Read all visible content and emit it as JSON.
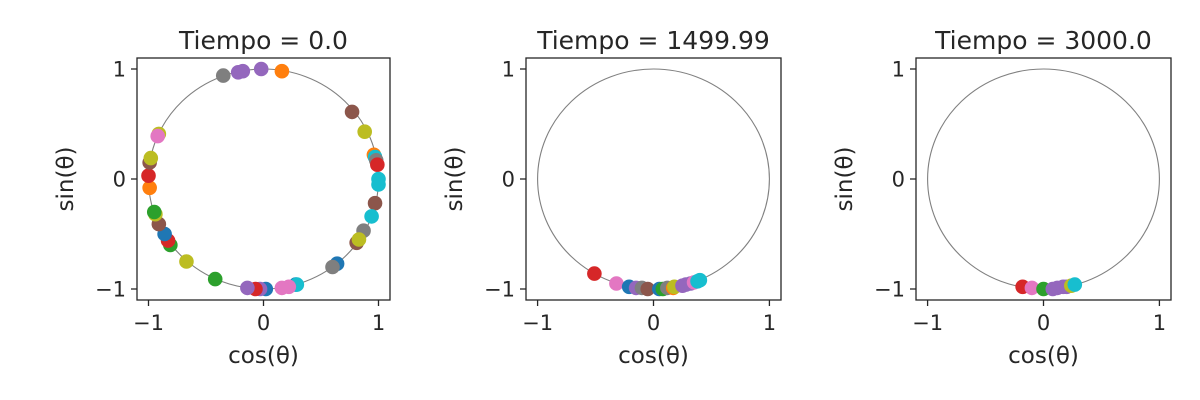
{
  "chart_data": [
    {
      "type": "scatter",
      "title": "Tiempo = 0.0",
      "xlabel": "cos(θ)",
      "ylabel": "sin(θ)",
      "xlim": [
        -1.1,
        1.1
      ],
      "ylim": [
        -1.1,
        1.1
      ],
      "xticks": [
        -1,
        0,
        1
      ],
      "yticks": [
        -1,
        0,
        1
      ],
      "xtick_labels": [
        "−1",
        "0",
        "1"
      ],
      "ytick_labels": [
        "−1",
        "0",
        "1"
      ],
      "reference_circle": true,
      "grid": false,
      "points": [
        {
          "x": -0.35,
          "y": 0.94,
          "color": "#7f7f7f"
        },
        {
          "x": -0.22,
          "y": 0.97,
          "color": "#9467bd"
        },
        {
          "x": -0.18,
          "y": 0.98,
          "color": "#9467bd"
        },
        {
          "x": -0.02,
          "y": 1.0,
          "color": "#9467bd"
        },
        {
          "x": 0.16,
          "y": 0.98,
          "color": "#ff7f0e"
        },
        {
          "x": 0.77,
          "y": 0.61,
          "color": "#8c564b"
        },
        {
          "x": 0.88,
          "y": 0.43,
          "color": "#bcbd22"
        },
        {
          "x": 0.96,
          "y": 0.22,
          "color": "#ff7f0e"
        },
        {
          "x": 0.97,
          "y": 0.2,
          "color": "#17becf"
        },
        {
          "x": 0.98,
          "y": 0.17,
          "color": "#7f7f7f"
        },
        {
          "x": 0.99,
          "y": 0.13,
          "color": "#d62728"
        },
        {
          "x": 1.0,
          "y": 0.0,
          "color": "#17becf"
        },
        {
          "x": 1.0,
          "y": -0.05,
          "color": "#17becf"
        },
        {
          "x": 0.97,
          "y": -0.22,
          "color": "#8c564b"
        },
        {
          "x": 0.94,
          "y": -0.34,
          "color": "#17becf"
        },
        {
          "x": 0.87,
          "y": -0.47,
          "color": "#7f7f7f"
        },
        {
          "x": 0.81,
          "y": -0.58,
          "color": "#8c564b"
        },
        {
          "x": 0.83,
          "y": -0.55,
          "color": "#bcbd22"
        },
        {
          "x": 0.64,
          "y": -0.77,
          "color": "#1f77b4"
        },
        {
          "x": 0.6,
          "y": -0.8,
          "color": "#7f7f7f"
        },
        {
          "x": 0.28,
          "y": -0.96,
          "color": "#1f77b4"
        },
        {
          "x": 0.29,
          "y": -0.96,
          "color": "#17becf"
        },
        {
          "x": 0.22,
          "y": -0.98,
          "color": "#e377c2"
        },
        {
          "x": 0.16,
          "y": -0.99,
          "color": "#e377c2"
        },
        {
          "x": 0.02,
          "y": -1.0,
          "color": "#1f77b4"
        },
        {
          "x": -0.03,
          "y": -1.0,
          "color": "#9467bd"
        },
        {
          "x": -0.07,
          "y": -1.0,
          "color": "#d62728"
        },
        {
          "x": -0.14,
          "y": -0.99,
          "color": "#9467bd"
        },
        {
          "x": -0.42,
          "y": -0.91,
          "color": "#2ca02c"
        },
        {
          "x": -0.67,
          "y": -0.75,
          "color": "#bcbd22"
        },
        {
          "x": -0.81,
          "y": -0.6,
          "color": "#2ca02c"
        },
        {
          "x": -0.83,
          "y": -0.56,
          "color": "#d62728"
        },
        {
          "x": -0.86,
          "y": -0.5,
          "color": "#1f77b4"
        },
        {
          "x": -0.91,
          "y": -0.41,
          "color": "#8c564b"
        },
        {
          "x": -0.94,
          "y": -0.32,
          "color": "#bcbd22"
        },
        {
          "x": -0.95,
          "y": -0.3,
          "color": "#2ca02c"
        },
        {
          "x": -0.99,
          "y": -0.08,
          "color": "#ff7f0e"
        },
        {
          "x": -1.0,
          "y": 0.03,
          "color": "#d62728"
        },
        {
          "x": -0.99,
          "y": 0.15,
          "color": "#8c564b"
        },
        {
          "x": -0.98,
          "y": 0.19,
          "color": "#bcbd22"
        },
        {
          "x": -0.91,
          "y": 0.41,
          "color": "#bcbd22"
        },
        {
          "x": -0.92,
          "y": 0.39,
          "color": "#e377c2"
        }
      ]
    },
    {
      "type": "scatter",
      "title": "Tiempo = 1499.99",
      "xlabel": "cos(θ)",
      "ylabel": "sin(θ)",
      "xlim": [
        -1.1,
        1.1
      ],
      "ylim": [
        -1.1,
        1.1
      ],
      "xticks": [
        -1,
        0,
        1
      ],
      "yticks": [
        -1,
        0,
        1
      ],
      "xtick_labels": [
        "−1",
        "0",
        "1"
      ],
      "ytick_labels": [
        "−1",
        "0",
        "1"
      ],
      "reference_circle": true,
      "grid": false,
      "points": [
        {
          "x": -0.51,
          "y": -0.86,
          "color": "#d62728"
        },
        {
          "x": -0.32,
          "y": -0.95,
          "color": "#e377c2"
        },
        {
          "x": -0.21,
          "y": -0.98,
          "color": "#1f77b4"
        },
        {
          "x": -0.15,
          "y": -0.99,
          "color": "#9467bd"
        },
        {
          "x": -0.1,
          "y": -0.99,
          "color": "#7f7f7f"
        },
        {
          "x": -0.05,
          "y": -1.0,
          "color": "#8c564b"
        },
        {
          "x": 0.05,
          "y": -1.0,
          "color": "#1f77b4"
        },
        {
          "x": 0.08,
          "y": -1.0,
          "color": "#2ca02c"
        },
        {
          "x": 0.12,
          "y": -0.99,
          "color": "#7f7f7f"
        },
        {
          "x": 0.17,
          "y": -0.99,
          "color": "#ff7f0e"
        },
        {
          "x": 0.18,
          "y": -0.98,
          "color": "#bcbd22"
        },
        {
          "x": 0.25,
          "y": -0.97,
          "color": "#9467bd"
        },
        {
          "x": 0.28,
          "y": -0.96,
          "color": "#9467bd"
        },
        {
          "x": 0.32,
          "y": -0.95,
          "color": "#9467bd"
        },
        {
          "x": 0.35,
          "y": -0.94,
          "color": "#e377c2"
        },
        {
          "x": 0.38,
          "y": -0.93,
          "color": "#17becf"
        },
        {
          "x": 0.4,
          "y": -0.92,
          "color": "#17becf"
        }
      ]
    },
    {
      "type": "scatter",
      "title": "Tiempo = 3000.0",
      "xlabel": "cos(θ)",
      "ylabel": "sin(θ)",
      "xlim": [
        -1.1,
        1.1
      ],
      "ylim": [
        -1.1,
        1.1
      ],
      "xticks": [
        -1,
        0,
        1
      ],
      "yticks": [
        -1,
        0,
        1
      ],
      "xtick_labels": [
        "−1",
        "0",
        "1"
      ],
      "ytick_labels": [
        "−1",
        "0",
        "1"
      ],
      "reference_circle": true,
      "grid": false,
      "points": [
        {
          "x": -0.18,
          "y": -0.98,
          "color": "#d62728"
        },
        {
          "x": -0.1,
          "y": -0.99,
          "color": "#e377c2"
        },
        {
          "x": 0.0,
          "y": -1.0,
          "color": "#2ca02c"
        },
        {
          "x": 0.08,
          "y": -1.0,
          "color": "#9467bd"
        },
        {
          "x": 0.12,
          "y": -0.99,
          "color": "#9467bd"
        },
        {
          "x": 0.17,
          "y": -0.98,
          "color": "#9467bd"
        },
        {
          "x": 0.2,
          "y": -0.98,
          "color": "#9467bd"
        },
        {
          "x": 0.24,
          "y": -0.97,
          "color": "#bcbd22"
        },
        {
          "x": 0.27,
          "y": -0.96,
          "color": "#17becf"
        }
      ]
    }
  ]
}
